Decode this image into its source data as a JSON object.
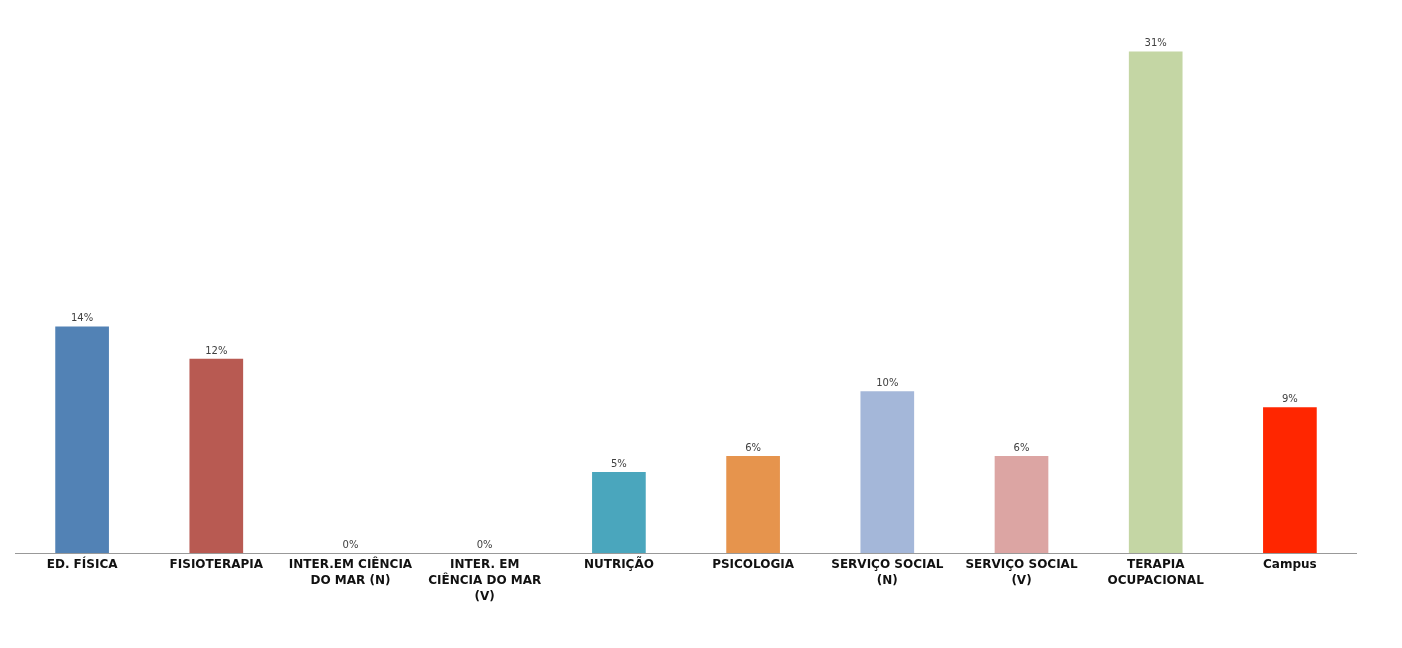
{
  "chart_data": {
    "type": "bar",
    "categories": [
      "ED. FÍSICA",
      "FISIOTERAPIA",
      "INTER.EM CIÊNCIA DO MAR (N)",
      "INTER. EM CIÊNCIA DO MAR (V)",
      "NUTRIÇÃO",
      "PSICOLOGIA",
      "SERVIÇO SOCIAL (N)",
      "SERVIÇO SOCIAL (V)",
      "TERAPIA OCUPACIONAL",
      "Campus"
    ],
    "values": [
      14,
      12,
      0,
      0,
      5,
      6,
      10,
      6,
      31,
      9
    ],
    "colors": [
      "#5282b5",
      "#b85a52",
      "#9bbb59",
      "#8064a2",
      "#4aa6bd",
      "#e6944d",
      "#a4b7d9",
      "#dca5a3",
      "#c4d6a4",
      "#ff2600"
    ],
    "value_labels": [
      "14%",
      "12%",
      "0%",
      "0%",
      "5%",
      "6%",
      "10%",
      "6%",
      "31%",
      "9%"
    ]
  }
}
